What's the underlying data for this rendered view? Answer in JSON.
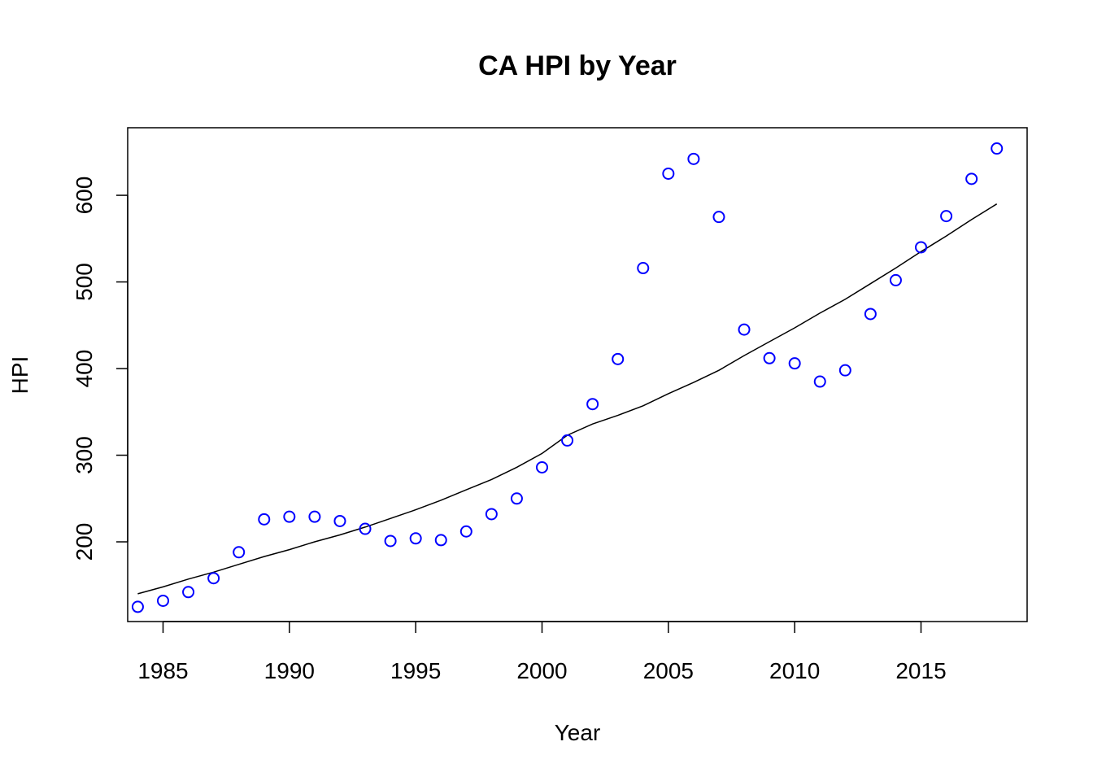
{
  "chart_data": {
    "type": "scatter",
    "title": "CA HPI by Year",
    "xlabel": "Year",
    "ylabel": "HPI",
    "xlim": [
      1983.6,
      2019.2
    ],
    "ylim": [
      108,
      678
    ],
    "xticks": [
      1985,
      1990,
      1995,
      2000,
      2005,
      2010,
      2015
    ],
    "yticks": [
      200,
      300,
      400,
      500,
      600
    ],
    "grid": false,
    "legend": "none",
    "series": [
      {
        "kind": "points",
        "color": "#0000ff",
        "x": [
          1984,
          1985,
          1986,
          1987,
          1988,
          1989,
          1990,
          1991,
          1992,
          1993,
          1994,
          1995,
          1996,
          1997,
          1998,
          1999,
          2000,
          2001,
          2002,
          2003,
          2004,
          2005,
          2006,
          2007,
          2008,
          2009,
          2010,
          2011,
          2012,
          2013,
          2014,
          2015,
          2016,
          2017,
          2018
        ],
        "y": [
          125,
          132,
          142,
          158,
          188,
          226,
          229,
          229,
          224,
          215,
          201,
          204,
          202,
          212,
          232,
          250,
          286,
          317,
          359,
          411,
          516,
          625,
          642,
          575,
          445,
          412,
          406,
          385,
          398,
          463,
          502,
          540,
          576,
          619,
          654
        ]
      },
      {
        "kind": "line",
        "color": "#000000",
        "x": [
          1984,
          1985,
          1986,
          1987,
          1988,
          1989,
          1990,
          1991,
          1992,
          1993,
          1994,
          1995,
          1996,
          1997,
          1998,
          1999,
          2000,
          2001,
          2002,
          2003,
          2004,
          2005,
          2006,
          2007,
          2008,
          2009,
          2010,
          2011,
          2012,
          2013,
          2014,
          2015,
          2016,
          2017,
          2018
        ],
        "y": [
          140,
          148,
          157,
          165,
          174,
          183,
          191,
          200,
          208,
          217,
          227,
          237,
          248,
          260,
          272,
          286,
          302,
          323,
          336,
          346,
          357,
          371,
          384,
          398,
          415,
          431,
          447,
          464,
          480,
          498,
          516,
          535,
          553,
          572,
          590
        ]
      }
    ]
  }
}
